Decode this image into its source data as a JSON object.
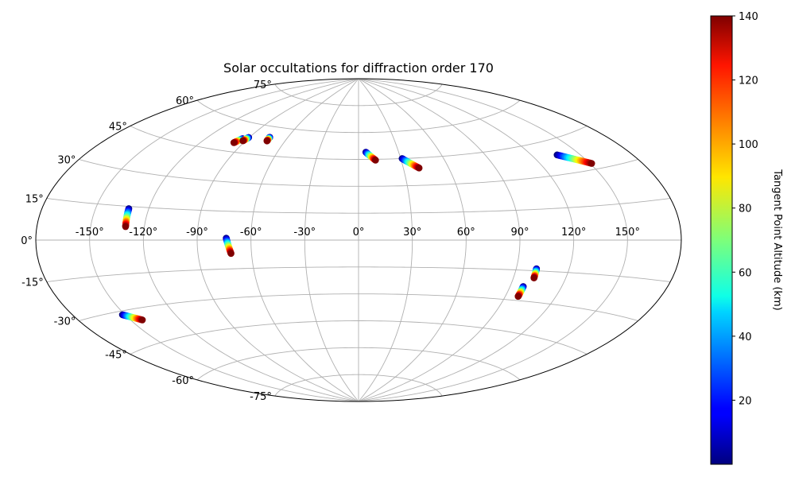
{
  "chart_data": {
    "type": "scatter",
    "projection": "aitoff",
    "title": "Solar occultations for diffraction order 170",
    "xlabel": "",
    "ylabel": "",
    "grid": true,
    "xlim": [
      -180,
      180
    ],
    "ylim": [
      -90,
      90
    ],
    "lon_ticks": [
      -150,
      -120,
      -90,
      -60,
      -30,
      0,
      30,
      60,
      90,
      120,
      150
    ],
    "lon_tick_labels": [
      "-150°",
      "-120°",
      "-90°",
      "-60°",
      "-30°",
      "0°",
      "30°",
      "60°",
      "90°",
      "120°",
      "150°"
    ],
    "lat_ticks": [
      -75,
      -60,
      -45,
      -30,
      -15,
      0,
      15,
      30,
      45,
      60,
      75
    ],
    "lat_tick_labels": [
      "-75°",
      "-60°",
      "-45°",
      "-30°",
      "-15°",
      "0°",
      "15°",
      "30°",
      "45°",
      "60°",
      "75°"
    ],
    "colorbar": {
      "label": "Tangent Point Altitude (km)",
      "colormap": "jet",
      "range": [
        0,
        140
      ],
      "ticks": [
        20,
        40,
        60,
        80,
        100,
        120,
        140
      ],
      "tick_labels": [
        "20",
        "40",
        "60",
        "80",
        "100",
        "120",
        "140"
      ]
    },
    "occultations": [
      {
        "lon_start": -151.5,
        "lat_start": -31.5,
        "lon_end": -143.0,
        "lat_end": -35.0,
        "alt_start": 0,
        "alt_end": 140
      },
      {
        "lon_start": -131.3,
        "lat_start": 14.0,
        "lon_end": -130.5,
        "lat_end": 6.0,
        "alt_start": 0,
        "alt_end": 140
      },
      {
        "lon_start": -94.0,
        "lat_start": 52.0,
        "lon_end": -97.0,
        "lat_end": 49.5,
        "alt_start": 0,
        "alt_end": 140
      },
      {
        "lon_start": -90.5,
        "lat_start": 53.0,
        "lon_end": -92.0,
        "lat_end": 51.0,
        "alt_start": 0,
        "alt_end": 140
      },
      {
        "lon_start": -74.5,
        "lat_start": 54.5,
        "lon_end": -74.0,
        "lat_end": 52.5,
        "alt_start": 0,
        "alt_end": 140
      },
      {
        "lon_start": -73.8,
        "lat_start": 1.0,
        "lon_end": -71.5,
        "lat_end": -7.0,
        "alt_start": 0,
        "alt_end": 140
      },
      {
        "lon_start": 5.5,
        "lat_start": 49.0,
        "lon_end": 12.0,
        "lat_end": 44.5,
        "alt_start": 0,
        "alt_end": 140
      },
      {
        "lon_start": 31.0,
        "lat_start": 45.0,
        "lon_end": 40.5,
        "lat_end": 39.5,
        "alt_start": 0,
        "alt_end": 140
      },
      {
        "lon_start": 136.0,
        "lat_start": 38.5,
        "lon_end": 151.0,
        "lat_end": 32.5,
        "alt_start": 0,
        "alt_end": 140
      },
      {
        "lon_start": 101.5,
        "lat_start": -14.0,
        "lon_end": 101.8,
        "lat_end": -18.5,
        "alt_start": 0,
        "alt_end": 140
      },
      {
        "lon_start": 97.7,
        "lat_start": -23.0,
        "lon_end": 97.7,
        "lat_end": -28.0,
        "alt_start": 0,
        "alt_end": 140
      }
    ]
  }
}
